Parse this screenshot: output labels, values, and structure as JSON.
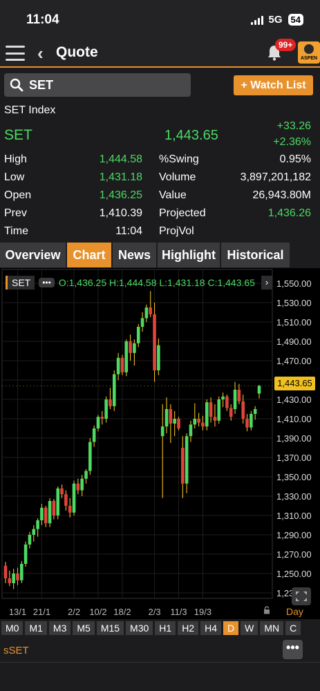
{
  "status": {
    "time": "11:04",
    "network": "5G",
    "battery": "54"
  },
  "nav": {
    "title": "Quote",
    "badge": "99+",
    "logo": "ASPEN"
  },
  "search": {
    "value": "SET",
    "watch_label": "+ Watch List"
  },
  "quote": {
    "name": "SET Index",
    "symbol": "SET",
    "last": "1,443.65",
    "change": "+33.26",
    "pct_change": "+2.36%",
    "rows": [
      {
        "l1": "High",
        "v1": "1,444.58",
        "v1_green": true,
        "l2": "%Swing",
        "v2": "0.95%",
        "v2_green": false
      },
      {
        "l1": "Low",
        "v1": "1,431.18",
        "v1_green": true,
        "l2": "Volume",
        "v2": "3,897,201,182",
        "v2_green": false
      },
      {
        "l1": "Open",
        "v1": "1,436.25",
        "v1_green": true,
        "l2": "Value",
        "v2": "26,943.80M",
        "v2_green": false
      },
      {
        "l1": "Prev",
        "v1": "1,410.39",
        "v1_green": false,
        "l2": "Projected",
        "v2": "1,436.26",
        "v2_green": true
      },
      {
        "l1": "Time",
        "v1": "11:04",
        "v1_green": false,
        "l2": "ProjVol",
        "v2": "",
        "v2_green": false
      }
    ]
  },
  "tabs": [
    "Overview",
    "Chart",
    "News",
    "Highlight",
    "Historical"
  ],
  "active_tab": "Chart",
  "chart_bar": {
    "symbol": "SET",
    "dots": "•••",
    "ohlc": "O:1,436.25  H:1,444.58  L:1,431.18  C:1,443.65",
    "arrow": "›"
  },
  "chart_data": {
    "type": "candlestick",
    "ylim": [
      1230,
      1555
    ],
    "y_ticks": [
      1550,
      1530,
      1510,
      1490,
      1470,
      1450,
      1430,
      1410,
      1390,
      1370,
      1350,
      1330,
      1310,
      1290,
      1270,
      1250,
      1230
    ],
    "y_tick_labels": [
      "1,550.00",
      "1,530.00",
      "1,510.00",
      "1,490.00",
      "1,470.00",
      "1,450.00",
      "1,430.00",
      "1,410.00",
      "1,390.00",
      "1,370.00",
      "1,350.00",
      "1,330.00",
      "1,310.00",
      "1,290.00",
      "1,270.00",
      "1,250.00",
      "1,230.00"
    ],
    "x_labels": [
      "13/1",
      "21/1",
      "2/2",
      "10/2",
      "18/2",
      "2/3",
      "11/3",
      "19/3"
    ],
    "x_label_index": [
      3,
      9,
      17,
      23,
      29,
      37,
      43,
      49
    ],
    "current_price": "1,443.65",
    "period": "Day",
    "candles": [
      [
        1258,
        1262,
        1240,
        1245
      ],
      [
        1245,
        1253,
        1237,
        1240
      ],
      [
        1240,
        1255,
        1234,
        1250
      ],
      [
        1250,
        1256,
        1238,
        1243
      ],
      [
        1243,
        1263,
        1240,
        1260
      ],
      [
        1260,
        1283,
        1257,
        1280
      ],
      [
        1280,
        1293,
        1276,
        1290
      ],
      [
        1290,
        1300,
        1283,
        1296
      ],
      [
        1296,
        1307,
        1288,
        1305
      ],
      [
        1305,
        1322,
        1300,
        1318
      ],
      [
        1318,
        1320,
        1298,
        1302
      ],
      [
        1302,
        1328,
        1298,
        1325
      ],
      [
        1325,
        1327,
        1306,
        1310
      ],
      [
        1310,
        1340,
        1306,
        1338
      ],
      [
        1338,
        1342,
        1328,
        1332
      ],
      [
        1332,
        1336,
        1315,
        1320
      ],
      [
        1320,
        1328,
        1308,
        1313
      ],
      [
        1313,
        1346,
        1310,
        1343
      ],
      [
        1343,
        1348,
        1332,
        1336
      ],
      [
        1336,
        1352,
        1330,
        1348
      ],
      [
        1348,
        1358,
        1343,
        1356
      ],
      [
        1356,
        1390,
        1352,
        1386
      ],
      [
        1386,
        1403,
        1381,
        1400
      ],
      [
        1400,
        1414,
        1397,
        1412
      ],
      [
        1412,
        1418,
        1404,
        1410
      ],
      [
        1410,
        1433,
        1406,
        1430
      ],
      [
        1430,
        1442,
        1420,
        1423
      ],
      [
        1423,
        1460,
        1418,
        1456
      ],
      [
        1456,
        1478,
        1450,
        1473
      ],
      [
        1473,
        1476,
        1455,
        1458
      ],
      [
        1458,
        1492,
        1454,
        1490
      ],
      [
        1490,
        1497,
        1470,
        1478
      ],
      [
        1478,
        1492,
        1465,
        1488
      ],
      [
        1488,
        1508,
        1484,
        1505
      ],
      [
        1505,
        1520,
        1500,
        1514
      ],
      [
        1514,
        1528,
        1510,
        1525
      ],
      [
        1525,
        1542,
        1515,
        1518
      ],
      [
        1518,
        1530,
        1448,
        1460
      ],
      [
        1460,
        1493,
        1455,
        1486
      ],
      [
        1392,
        1425,
        1328,
        1402
      ],
      [
        1402,
        1432,
        1395,
        1420
      ],
      [
        1420,
        1425,
        1385,
        1405
      ],
      [
        1405,
        1418,
        1392,
        1410
      ],
      [
        1410,
        1412,
        1398,
        1400
      ],
      [
        1380,
        1392,
        1328,
        1343
      ],
      [
        1343,
        1395,
        1333,
        1392
      ],
      [
        1392,
        1408,
        1386,
        1404
      ],
      [
        1404,
        1426,
        1400,
        1410
      ],
      [
        1410,
        1416,
        1402,
        1406
      ],
      [
        1406,
        1413,
        1398,
        1402
      ],
      [
        1402,
        1430,
        1398,
        1427
      ],
      [
        1427,
        1432,
        1406,
        1412
      ],
      [
        1412,
        1425,
        1402,
        1408
      ],
      [
        1408,
        1433,
        1405,
        1430
      ],
      [
        1430,
        1437,
        1422,
        1433
      ],
      [
        1433,
        1435,
        1418,
        1421
      ],
      [
        1421,
        1425,
        1408,
        1412
      ],
      [
        1420,
        1448,
        1415,
        1440
      ],
      [
        1440,
        1446,
        1425,
        1428
      ],
      [
        1428,
        1435,
        1405,
        1410
      ],
      [
        1410,
        1415,
        1397,
        1401
      ],
      [
        1401,
        1418,
        1398,
        1415
      ],
      [
        1415,
        1423,
        1409,
        1420
      ],
      [
        1436,
        1445,
        1431,
        1444
      ]
    ]
  },
  "timeframes": [
    "M0",
    "M1",
    "M3",
    "M5",
    "M15",
    "M30",
    "H1",
    "H2",
    "H4",
    "D",
    "W",
    "MN",
    "C"
  ],
  "active_timeframe": "D",
  "bottom": {
    "label": "sSET",
    "more": "•••"
  },
  "colors": {
    "accent": "#e8922e",
    "up": "#4cd964",
    "down": "#e0443a",
    "wick": "#f0c020"
  }
}
